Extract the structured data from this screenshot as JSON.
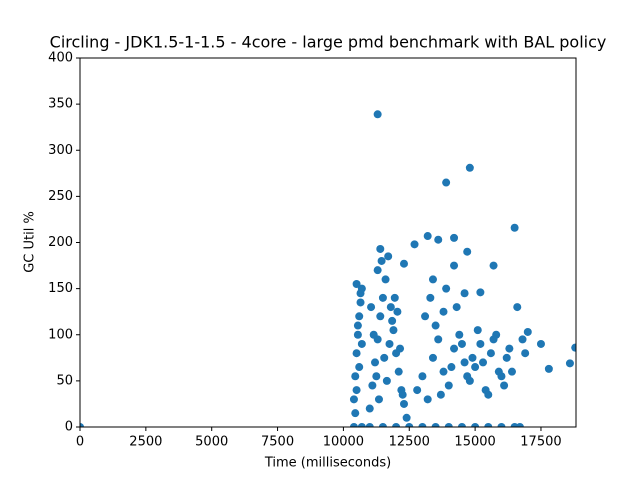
{
  "chart_data": {
    "type": "scatter",
    "title": "Circling - JDK1.5-1-1.5 - 4core -  large pmd benchmark with BAL policy",
    "x_label": "Time (milliseconds)",
    "y_label": "GC Util %",
    "xlim": [
      0,
      18830
    ],
    "ylim": [
      0,
      400
    ],
    "xticks": [
      0,
      2500,
      5000,
      7500,
      10000,
      12500,
      15000,
      17500
    ],
    "yticks": [
      0,
      50,
      100,
      150,
      200,
      250,
      300,
      350,
      400
    ],
    "x": [
      0,
      10400,
      10700,
      11000,
      11500,
      12000,
      12500,
      13000,
      13500,
      14000,
      14500,
      15000,
      15500,
      16000,
      16500,
      16700,
      10400,
      10450,
      10500,
      10550,
      10600,
      10650,
      10700,
      10450,
      10500,
      10600,
      10700,
      10550,
      10650,
      10500,
      11000,
      11100,
      11200,
      11300,
      11400,
      11500,
      11600,
      11700,
      11800,
      11900,
      12000,
      12100,
      12200,
      12300,
      12400,
      11050,
      11150,
      11250,
      11350,
      11450,
      11550,
      11650,
      11750,
      11850,
      11950,
      12050,
      12150,
      12250,
      11400,
      11300,
      12800,
      13000,
      13200,
      13400,
      13600,
      13800,
      14000,
      14200,
      14400,
      14600,
      14800,
      15000,
      15200,
      15400,
      15600,
      15800,
      16000,
      16200,
      16400,
      13100,
      13300,
      13500,
      13700,
      13900,
      14100,
      14300,
      14500,
      14700,
      14900,
      15100,
      15300,
      15500,
      15700,
      15900,
      16100,
      16300,
      13400,
      13800,
      14200,
      14600,
      11300,
      14800,
      13900,
      16500,
      14200,
      13200,
      12700,
      13600,
      14700,
      15700,
      12300,
      17000,
      17800,
      18600,
      18800,
      16600,
      15200,
      16900,
      17500,
      16800
    ],
    "series": [
      {
        "color": "#1f77b4",
        "values": [
          0,
          0,
          0,
          0,
          0,
          0,
          0,
          0,
          0,
          0,
          0,
          0,
          0,
          0,
          0,
          0,
          30,
          55,
          80,
          100,
          120,
          145,
          150,
          15,
          40,
          65,
          90,
          110,
          135,
          155,
          20,
          45,
          70,
          95,
          120,
          140,
          160,
          185,
          130,
          105,
          80,
          60,
          40,
          25,
          10,
          130,
          100,
          55,
          30,
          180,
          75,
          50,
          90,
          115,
          140,
          125,
          85,
          35,
          193,
          170,
          40,
          55,
          30,
          75,
          95,
          60,
          45,
          85,
          100,
          70,
          50,
          65,
          90,
          40,
          80,
          100,
          55,
          75,
          60,
          120,
          140,
          110,
          35,
          150,
          65,
          130,
          90,
          55,
          75,
          105,
          70,
          35,
          95,
          60,
          45,
          85,
          160,
          125,
          175,
          145,
          339,
          281,
          265,
          216,
          205,
          207,
          198,
          203,
          190,
          175,
          177,
          103,
          63,
          69,
          86,
          130,
          146,
          80,
          90,
          95
        ]
      }
    ]
  }
}
